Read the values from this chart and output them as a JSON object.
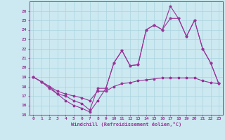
{
  "xlabel": "Windchill (Refroidissement éolien,°C)",
  "bg_color": "#cce8f0",
  "line_color": "#993399",
  "grid_color": "#aad4e0",
  "xlim": [
    -0.5,
    23.5
  ],
  "ylim": [
    15,
    27
  ],
  "yticks": [
    15,
    16,
    17,
    18,
    19,
    20,
    21,
    22,
    23,
    24,
    25,
    26
  ],
  "xticks": [
    0,
    1,
    2,
    3,
    4,
    5,
    6,
    7,
    8,
    9,
    10,
    11,
    12,
    13,
    14,
    15,
    16,
    17,
    18,
    19,
    20,
    21,
    22,
    23
  ],
  "line1_x": [
    0,
    1,
    2,
    3,
    4,
    5,
    6,
    7,
    8,
    9,
    10,
    11,
    12,
    13,
    14,
    15,
    16,
    17,
    18,
    19,
    20,
    21,
    22,
    23
  ],
  "line1_y": [
    19.0,
    18.5,
    17.8,
    17.2,
    16.5,
    16.0,
    15.7,
    15.3,
    16.5,
    17.8,
    20.5,
    21.8,
    20.2,
    20.3,
    24.0,
    24.5,
    24.0,
    26.5,
    25.2,
    23.3,
    25.0,
    22.0,
    20.5,
    18.3
  ],
  "line2_x": [
    0,
    1,
    2,
    3,
    4,
    5,
    6,
    7,
    8,
    9,
    10,
    11,
    12,
    13,
    14,
    15,
    16,
    17,
    18,
    19,
    20,
    21,
    22,
    23
  ],
  "line2_y": [
    19.0,
    18.5,
    18.0,
    17.5,
    17.2,
    17.0,
    16.8,
    16.5,
    17.5,
    17.5,
    18.0,
    18.3,
    18.4,
    18.6,
    18.7,
    18.8,
    18.9,
    18.9,
    18.9,
    18.9,
    18.9,
    18.6,
    18.4,
    18.3
  ],
  "line3_x": [
    0,
    1,
    2,
    3,
    4,
    5,
    6,
    7,
    8,
    9,
    10,
    11,
    12,
    13,
    14,
    15,
    16,
    17,
    18,
    19,
    20,
    21,
    22,
    23
  ],
  "line3_y": [
    19.0,
    18.5,
    18.0,
    17.2,
    17.0,
    16.5,
    16.2,
    15.5,
    17.8,
    17.8,
    20.5,
    21.8,
    20.2,
    20.3,
    24.0,
    24.5,
    24.0,
    25.2,
    25.2,
    23.3,
    25.0,
    22.0,
    20.5,
    18.3
  ]
}
